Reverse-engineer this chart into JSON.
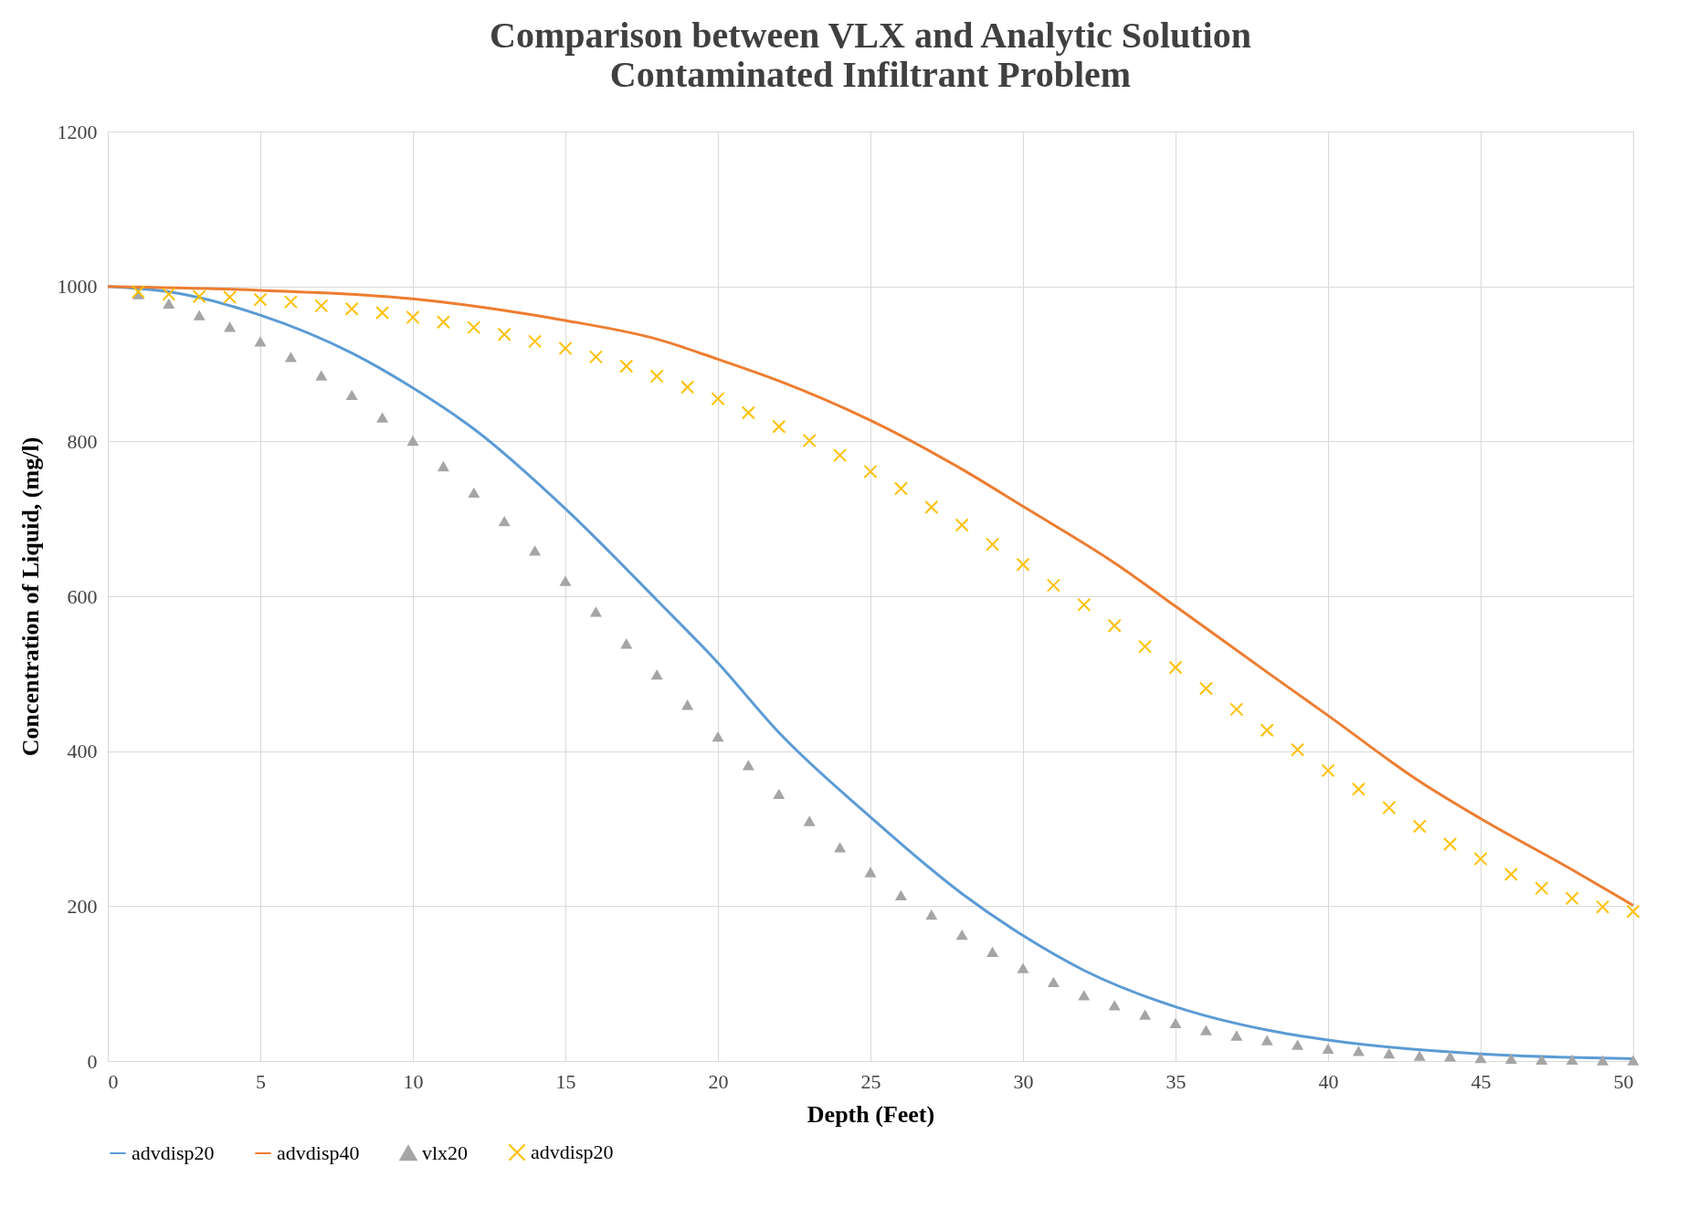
{
  "chart_data": {
    "type": "line",
    "title": "Comparison between VLX and Analytic Solution",
    "subtitle": "Contaminated Infiltrant Problem",
    "xlabel": "Depth  (Feet)",
    "ylabel": "Concentration of  Liquid, (mg/l)",
    "xlim": [
      0,
      50
    ],
    "xticks": [
      0,
      5,
      10,
      15,
      20,
      25,
      30,
      35,
      40,
      45,
      50
    ],
    "ylim": [
      0,
      1200
    ],
    "yticks": [
      0,
      200,
      400,
      600,
      800,
      1000,
      1200
    ],
    "grid": true,
    "legend": "bottom",
    "series": [
      {
        "name": "advdisp20",
        "color": "#5b9bd5",
        "marker": "none",
        "x": [
          0,
          2,
          5,
          8,
          10,
          12,
          15,
          18,
          20,
          22,
          25,
          28,
          30,
          32,
          35,
          38,
          40,
          45,
          50
        ],
        "values": [
          1000,
          993,
          963,
          914,
          869,
          816,
          713,
          595,
          514,
          424,
          315,
          216,
          162,
          117,
          70,
          40,
          27,
          9,
          3
        ]
      },
      {
        "name": "advdisp40",
        "color": "#ed7d31",
        "marker": "none",
        "x": [
          0,
          5,
          10,
          13,
          15,
          18,
          20,
          22,
          25,
          28,
          30,
          33,
          35,
          38,
          40,
          43,
          45,
          48,
          50
        ],
        "values": [
          1000,
          995,
          984,
          969,
          956,
          932,
          906,
          878,
          827,
          764,
          716,
          643,
          587,
          502,
          446,
          361,
          313,
          247,
          201
        ]
      },
      {
        "name": "vlx20",
        "type": "scatter",
        "color": "#a5a5a5",
        "marker": "triangle",
        "x": [
          1,
          2,
          3,
          4,
          5,
          6,
          7,
          8,
          9,
          10,
          11,
          12,
          13,
          14,
          15,
          16,
          17,
          18,
          19,
          20,
          21,
          22,
          23,
          24,
          25,
          26,
          27,
          28,
          29,
          30,
          31,
          32,
          33,
          34,
          35,
          36,
          37,
          38,
          39,
          40,
          41,
          42,
          43,
          44,
          45,
          46,
          47,
          48,
          49,
          50
        ],
        "values": [
          990,
          978,
          963,
          948,
          929,
          909,
          885,
          860,
          831,
          801,
          768,
          734,
          697,
          659,
          620,
          580,
          539,
          499,
          460,
          419,
          382,
          345,
          310,
          276,
          244,
          214,
          189,
          163,
          141,
          120,
          102,
          85,
          72,
          60,
          49,
          40,
          33,
          27,
          21,
          16,
          13,
          10,
          7,
          6,
          4,
          3,
          2,
          2,
          1,
          1
        ]
      },
      {
        "name": "advdisp20",
        "type": "scatter",
        "color": "#ffc000",
        "marker": "cross",
        "x": [
          1,
          2,
          3,
          4,
          5,
          6,
          7,
          8,
          9,
          10,
          11,
          12,
          13,
          14,
          15,
          16,
          17,
          18,
          19,
          20,
          21,
          22,
          23,
          24,
          25,
          26,
          27,
          28,
          29,
          30,
          31,
          32,
          33,
          34,
          35,
          36,
          37,
          38,
          39,
          40,
          41,
          42,
          43,
          44,
          45,
          46,
          47,
          48,
          49,
          50
        ],
        "values": [
          993,
          990,
          987,
          986,
          983,
          980,
          975,
          971,
          966,
          960,
          954,
          947,
          938,
          929,
          920,
          909,
          897,
          884,
          870,
          855,
          837,
          819,
          801,
          782,
          761,
          739,
          715,
          692,
          667,
          641,
          614,
          589,
          562,
          535,
          508,
          481,
          454,
          427,
          402,
          375,
          351,
          327,
          303,
          280,
          261,
          241,
          223,
          210,
          199,
          193
        ]
      }
    ]
  }
}
